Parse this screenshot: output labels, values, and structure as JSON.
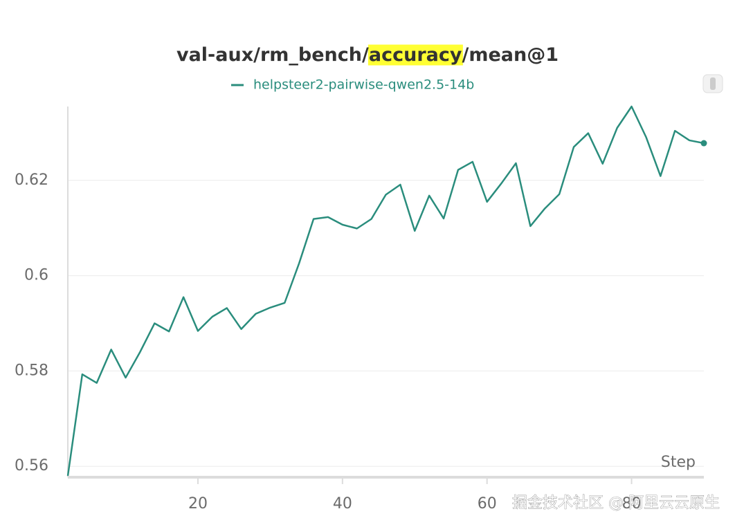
{
  "chart_data": {
    "type": "line",
    "title_parts": [
      "val-aux/rm_bench/",
      "accuracy",
      "/mean@1"
    ],
    "title_highlight": 1,
    "highlight_color": "#ffff33",
    "x_label": "Step",
    "x": [
      2,
      4,
      6,
      8,
      10,
      12,
      14,
      16,
      18,
      20,
      22,
      24,
      26,
      28,
      30,
      32,
      34,
      36,
      38,
      40,
      42,
      44,
      46,
      48,
      50,
      52,
      54,
      56,
      58,
      60,
      62,
      64,
      66,
      68,
      70,
      72,
      74,
      76,
      78,
      80,
      82,
      84,
      86,
      88,
      90
    ],
    "series": [
      {
        "name": "helpsteer2-pairwise-qwen2.5-14b",
        "color": "#2a8d7d",
        "values": [
          0.558,
          0.5793,
          0.5775,
          0.5845,
          0.5786,
          0.584,
          0.59,
          0.5883,
          0.5955,
          0.5884,
          0.5914,
          0.5932,
          0.5888,
          0.592,
          0.5933,
          0.5943,
          0.6026,
          0.6119,
          0.6123,
          0.6107,
          0.6099,
          0.6119,
          0.617,
          0.6191,
          0.6094,
          0.6168,
          0.612,
          0.6222,
          0.6239,
          0.6155,
          0.6194,
          0.6236,
          0.6104,
          0.6141,
          0.6171,
          0.627,
          0.6299,
          0.6235,
          0.631,
          0.6355,
          0.6291,
          0.6209,
          0.6304,
          0.6284,
          0.6278
        ]
      }
    ],
    "xlim": [
      2,
      90
    ],
    "xticks": [
      20,
      40,
      60,
      80
    ],
    "ylim": [
      0.558,
      0.6355
    ],
    "yticks": [
      0.56,
      0.58,
      0.6,
      0.62
    ],
    "grid": true,
    "legend": "top",
    "watermark": "掘金技术社区 @ 阿里云云原生"
  }
}
